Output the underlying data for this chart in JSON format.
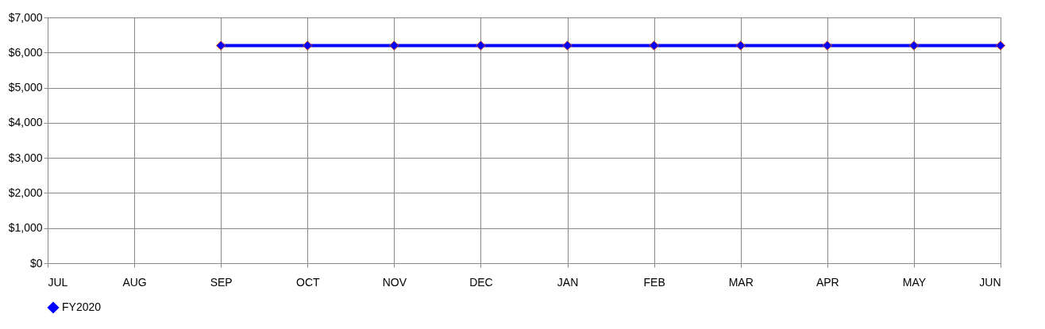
{
  "chart_data": {
    "type": "line",
    "categories": [
      "JUL",
      "AUG",
      "SEP",
      "OCT",
      "NOV",
      "DEC",
      "JAN",
      "FEB",
      "MAR",
      "APR",
      "MAY",
      "JUN"
    ],
    "series": [
      {
        "name": "FY2020",
        "color": "#0000ff",
        "values": [
          null,
          null,
          6200,
          6200,
          6200,
          6200,
          6200,
          6200,
          6200,
          6200,
          6200,
          6200
        ]
      }
    ],
    "ylim": [
      0,
      7000
    ],
    "yticks": [
      {
        "value": 0,
        "label": "$0"
      },
      {
        "value": 1000,
        "label": "$1,000"
      },
      {
        "value": 2000,
        "label": "$2,000"
      },
      {
        "value": 3000,
        "label": "$3,000"
      },
      {
        "value": 4000,
        "label": "$4,000"
      },
      {
        "value": 5000,
        "label": "$5,000"
      },
      {
        "value": 6000,
        "label": "$6,000"
      },
      {
        "value": 7000,
        "label": "$7,000"
      }
    ],
    "grid": true,
    "legend": "bottom",
    "marker": "diamond",
    "line_style": "solid"
  }
}
